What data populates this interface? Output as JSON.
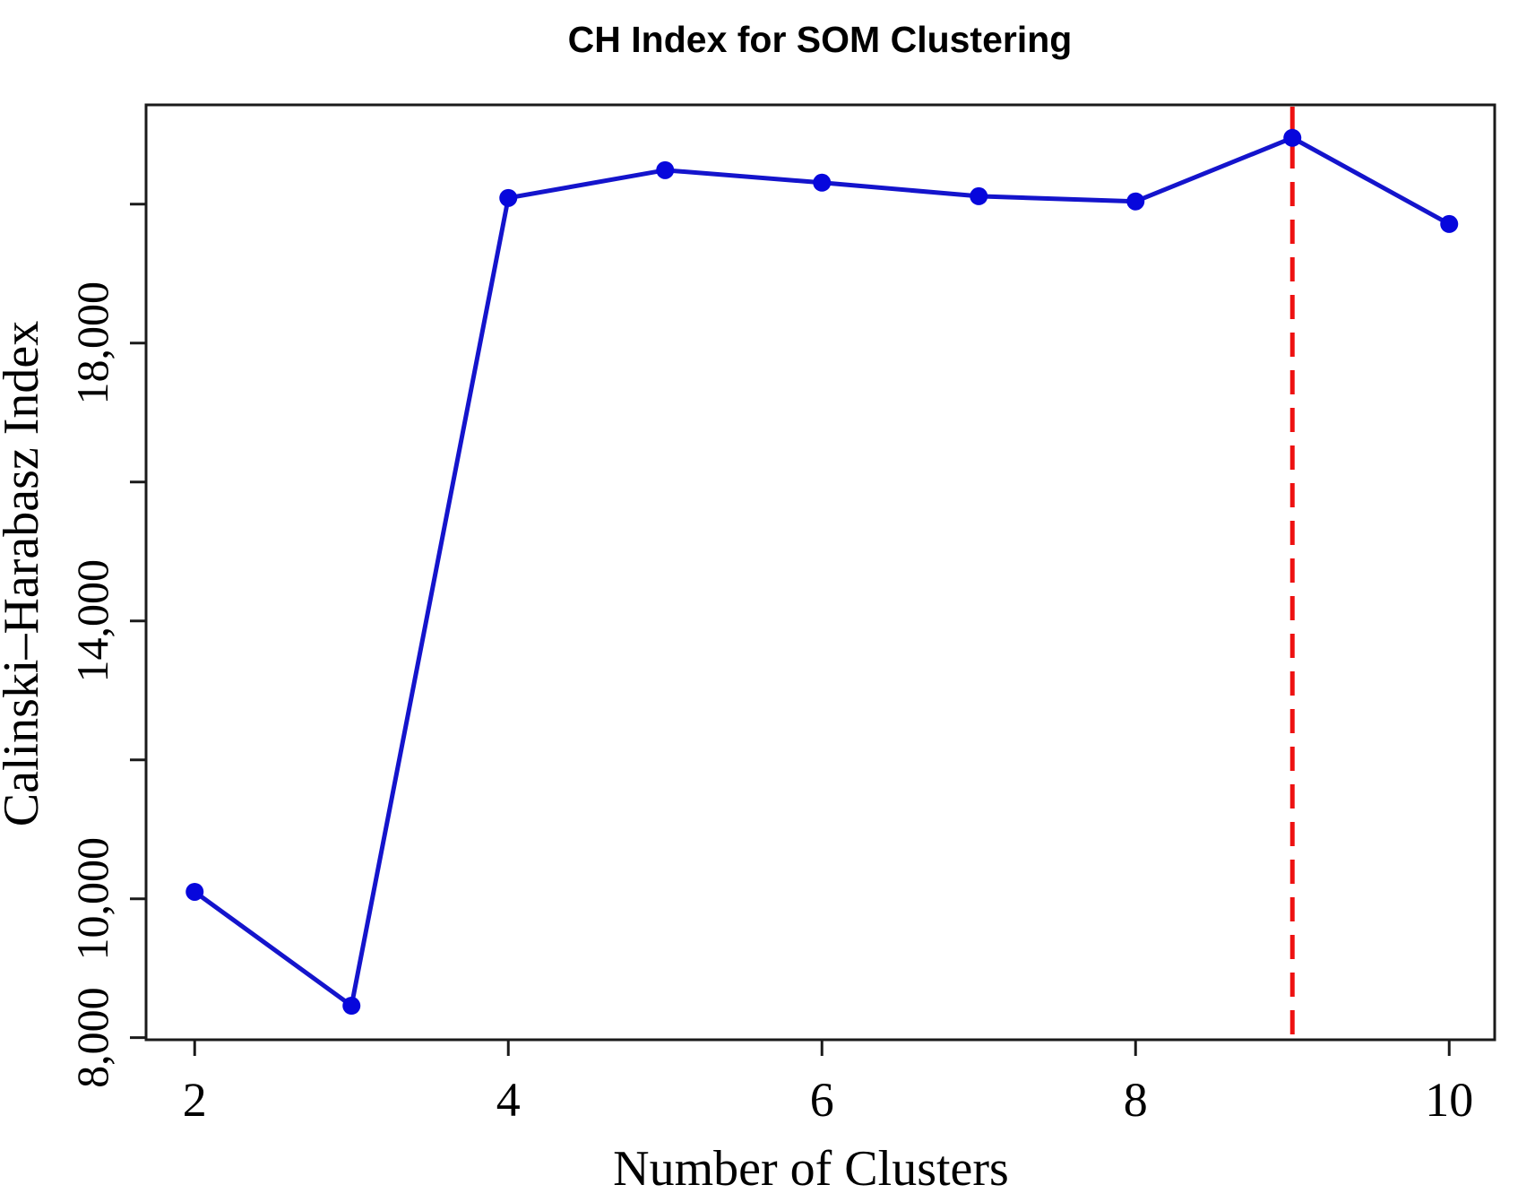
{
  "title": "CH Index for SOM Clustering",
  "chart_data": {
    "type": "line",
    "title": "CH Index for SOM Clustering",
    "xlabel": "Number of Clusters",
    "ylabel": "Calinski–Harabasz Index",
    "x": [
      2,
      3,
      4,
      5,
      6,
      7,
      8,
      9,
      10
    ],
    "values": [
      10100,
      8460,
      20090,
      20490,
      20310,
      20115,
      20040,
      20955,
      19715
    ],
    "xlim": [
      1.69,
      10.29
    ],
    "ylim": [
      7970,
      21430
    ],
    "x_ticks": [
      {
        "v": 2,
        "label": "2"
      },
      {
        "v": 4,
        "label": "4"
      },
      {
        "v": 6,
        "label": "6"
      },
      {
        "v": 8,
        "label": "8"
      },
      {
        "v": 10,
        "label": "10"
      }
    ],
    "y_ticks": [
      {
        "v": 8000,
        "label": "8,000"
      },
      {
        "v": 10000,
        "label": "10,000"
      },
      {
        "v": 12000,
        "label": ""
      },
      {
        "v": 14000,
        "label": "14,000"
      },
      {
        "v": 16000,
        "label": ""
      },
      {
        "v": 18000,
        "label": "18,000"
      },
      {
        "v": 20000,
        "label": ""
      }
    ],
    "grid": false,
    "legend": null,
    "line_color": "#1414CC",
    "marker_color": "#0707DC",
    "marker_style": "filled-circle",
    "axis_color": "#1a1a1a",
    "vline": {
      "x": 9,
      "color": "#EE1111",
      "style": "dashed"
    }
  }
}
